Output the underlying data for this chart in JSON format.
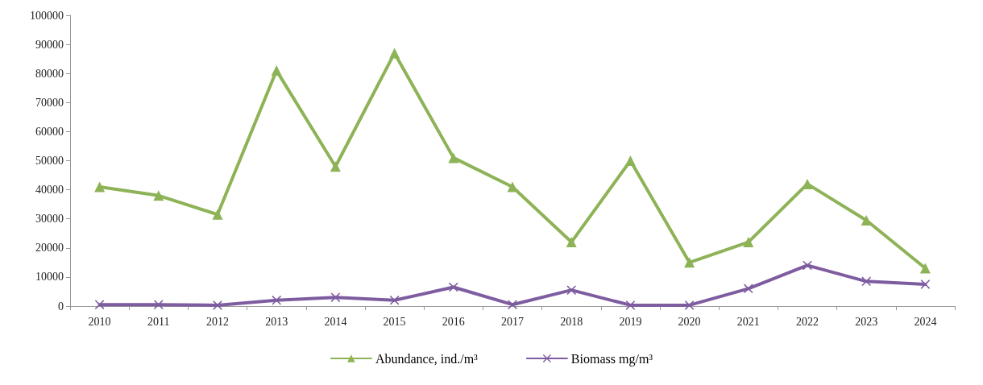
{
  "chart_data": {
    "type": "line",
    "categories": [
      "2010",
      "2011",
      "2012",
      "2013",
      "2014",
      "2015",
      "2016",
      "2017",
      "2018",
      "2019",
      "2020",
      "2021",
      "2022",
      "2023",
      "2024"
    ],
    "series": [
      {
        "name": "Abundance, ind./m³",
        "color": "#8db356",
        "marker": "triangle",
        "values": [
          41000,
          38000,
          31500,
          81000,
          48000,
          87000,
          51000,
          41000,
          22000,
          50000,
          15000,
          22000,
          42000,
          29500,
          13000
        ]
      },
      {
        "name": "Biomass mg/m³",
        "color": "#7e5ca0",
        "marker": "cross",
        "values": [
          500,
          500,
          300,
          2000,
          3000,
          2000,
          6500,
          500,
          5500,
          300,
          300,
          6000,
          14000,
          8500,
          7500
        ]
      }
    ],
    "ylim": [
      0,
      100000
    ],
    "yticks": [
      0,
      10000,
      20000,
      30000,
      40000,
      50000,
      60000,
      70000,
      80000,
      90000,
      100000
    ],
    "grid": false,
    "legend": "bottom",
    "line_style": "solid"
  }
}
